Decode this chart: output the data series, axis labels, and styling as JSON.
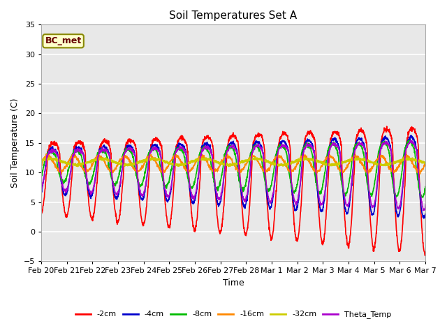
{
  "title": "Soil Temperatures Set A",
  "xlabel": "Time",
  "ylabel": "Soil Temperature (C)",
  "ylim": [
    -5,
    35
  ],
  "background_color": "#e8e8e8",
  "grid_color": "white",
  "annotation_text": "BC_met",
  "annotation_bg": "#ffffcc",
  "annotation_border": "#888800",
  "series": [
    {
      "label": "-2cm",
      "color": "#ff0000",
      "lw": 1.2
    },
    {
      "label": "-4cm",
      "color": "#0000cc",
      "lw": 1.2
    },
    {
      "label": "-8cm",
      "color": "#00bb00",
      "lw": 1.2
    },
    {
      "label": "-16cm",
      "color": "#ff8800",
      "lw": 1.2
    },
    {
      "label": "-32cm",
      "color": "#cccc00",
      "lw": 1.8
    },
    {
      "label": "Theta_Temp",
      "color": "#aa00cc",
      "lw": 1.2
    }
  ],
  "tick_labels": [
    "Feb 20",
    "Feb 21",
    "Feb 22",
    "Feb 23",
    "Feb 24",
    "Feb 25",
    "Feb 26",
    "Feb 27",
    "Feb 28",
    "Mar 1",
    "Mar 2",
    "Mar 3",
    "Mar 4",
    "Mar 5",
    "Mar 6",
    "Mar 7"
  ],
  "tick_positions": [
    0,
    1,
    2,
    3,
    4,
    5,
    6,
    7,
    8,
    9,
    10,
    11,
    12,
    13,
    14,
    15
  ],
  "yticks": [
    -5,
    0,
    5,
    10,
    15,
    20,
    25,
    30,
    35
  ]
}
